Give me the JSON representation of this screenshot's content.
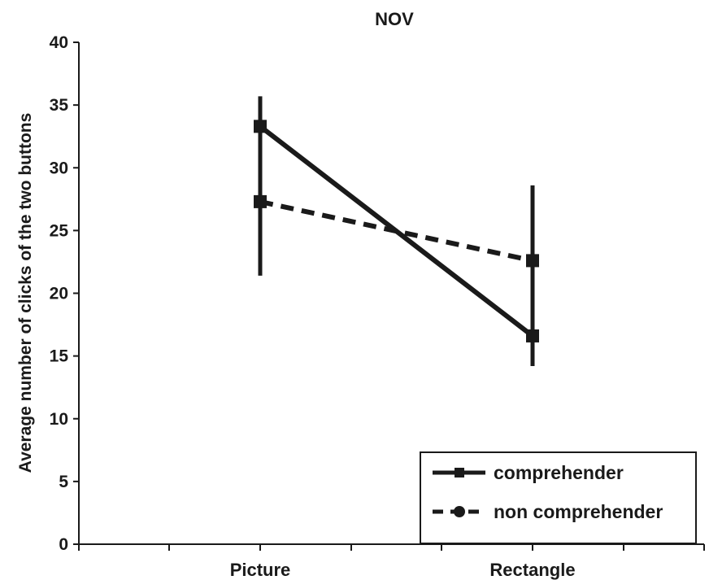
{
  "chart_data": {
    "type": "line",
    "title": "NOV",
    "xlabel": "",
    "ylabel": "Average number of clicks of the two buttons",
    "categories": [
      "Picture",
      "Rectangle"
    ],
    "ylim": [
      0,
      40
    ],
    "yticks": [
      0,
      5,
      10,
      15,
      20,
      25,
      30,
      35,
      40
    ],
    "grid": false,
    "legend_position": "bottom-right",
    "series": [
      {
        "name": "comprehender",
        "style": "solid",
        "marker": "square",
        "values": [
          33.3,
          16.6
        ],
        "error_low": [
          21.4,
          14.2
        ],
        "error_high": [
          35.7,
          28.6
        ]
      },
      {
        "name": "non comprehender",
        "style": "dashed",
        "marker": "circle",
        "values": [
          27.3,
          22.6
        ],
        "error_low": [],
        "error_high": []
      }
    ],
    "colors": {
      "line": "#1a1a1a",
      "background": "#ffffff"
    }
  }
}
